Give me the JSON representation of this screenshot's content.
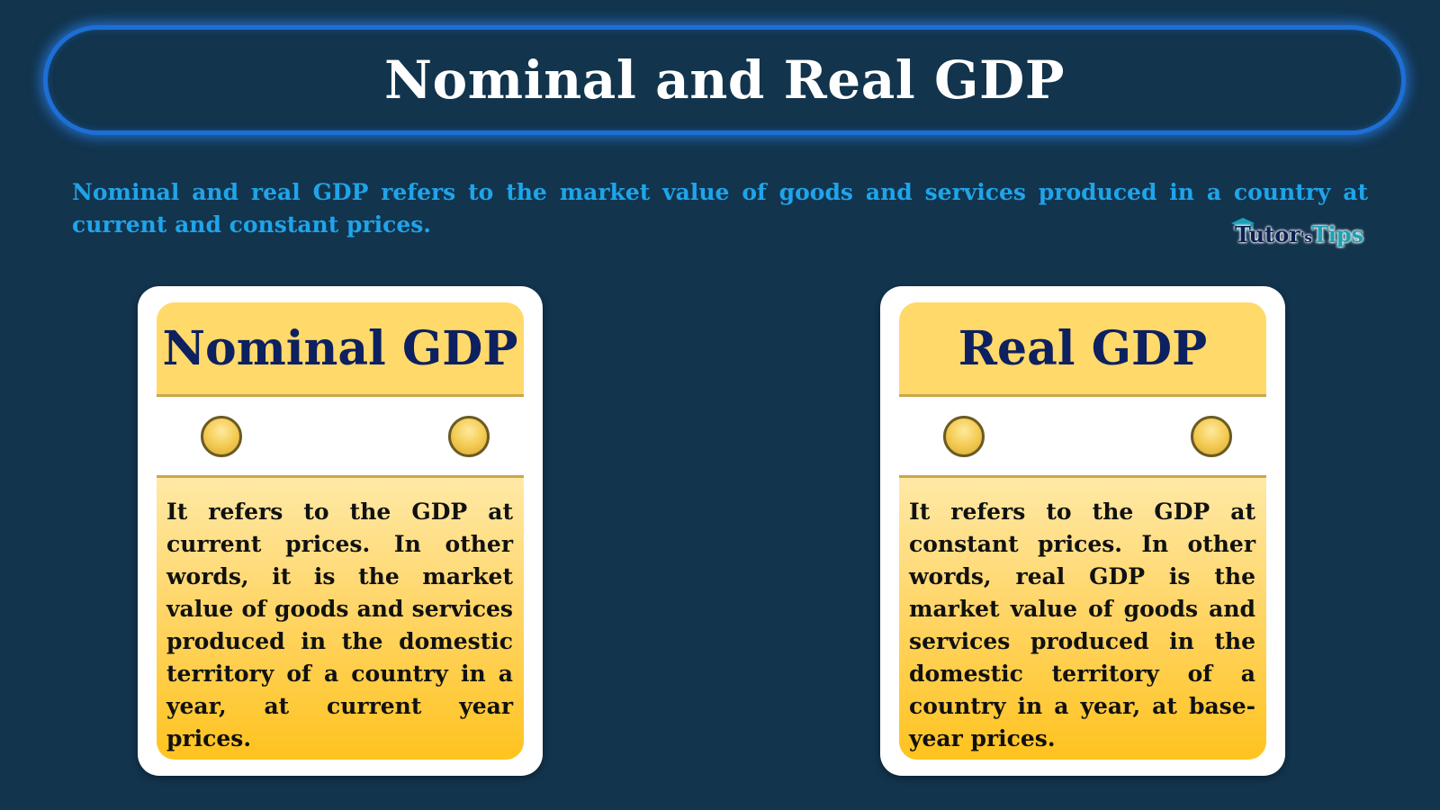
{
  "title": "Nominal and Real GDP",
  "intro": "Nominal and real GDP refers to the market value of goods and services produced in a country at current and constant prices.",
  "logo": {
    "part1": "Tutor",
    "part2": "'s",
    "part3": "Tips"
  },
  "cards": [
    {
      "heading": "Nominal GDP",
      "text": "It refers to the GDP at current prices. In other words, it is the market value of goods and services produced in the domestic territory of a country in a year, at current year prices."
    },
    {
      "heading": "Real GDP",
      "text": "It refers to the GDP at constant prices. In other words, real GDP is the market value of goods and services produced in the domestic territory of a country in a year, at base-year prices."
    }
  ],
  "colors": {
    "background": "#12344d",
    "title_border": "#1d6fd6",
    "intro_text": "#1fa4ea",
    "card_heading_bg": "#ffd96a",
    "card_heading_text": "#0d2060",
    "card_body_gradient_end": "#ffc31f"
  }
}
